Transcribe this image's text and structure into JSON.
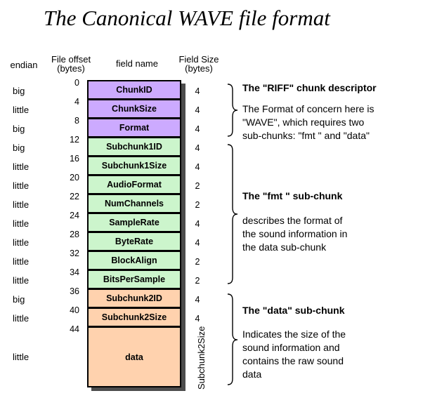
{
  "title": "The Canonical WAVE file format",
  "column_headers": {
    "endian": "endian",
    "offset_line1": "File offset",
    "offset_line2": "(bytes)",
    "field_name": "field name",
    "size_line1": "Field Size",
    "size_line2": "(bytes)"
  },
  "colors": {
    "riff_group": "#ccaaff",
    "fmt_group": "#ccf5cc",
    "data_group": "#ffd2ae",
    "shadow": "#4d4d4d"
  },
  "rows": [
    {
      "endian": "big",
      "offset": "0",
      "field": "ChunkID",
      "size": "4",
      "group": "riff_group"
    },
    {
      "endian": "little",
      "offset": "4",
      "field": "ChunkSize",
      "size": "4",
      "group": "riff_group"
    },
    {
      "endian": "big",
      "offset": "8",
      "field": "Format",
      "size": "4",
      "group": "riff_group"
    },
    {
      "endian": "big",
      "offset": "12",
      "field": "Subchunk1ID",
      "size": "4",
      "group": "fmt_group"
    },
    {
      "endian": "little",
      "offset": "16",
      "field": "Subchunk1Size",
      "size": "4",
      "group": "fmt_group"
    },
    {
      "endian": "little",
      "offset": "20",
      "field": "AudioFormat",
      "size": "2",
      "group": "fmt_group"
    },
    {
      "endian": "little",
      "offset": "22",
      "field": "NumChannels",
      "size": "2",
      "group": "fmt_group"
    },
    {
      "endian": "little",
      "offset": "24",
      "field": "SampleRate",
      "size": "4",
      "group": "fmt_group"
    },
    {
      "endian": "little",
      "offset": "28",
      "field": "ByteRate",
      "size": "4",
      "group": "fmt_group"
    },
    {
      "endian": "little",
      "offset": "32",
      "field": "BlockAlign",
      "size": "2",
      "group": "fmt_group"
    },
    {
      "endian": "little",
      "offset": "34",
      "field": "BitsPerSample",
      "size": "2",
      "group": "fmt_group"
    },
    {
      "endian": "big",
      "offset": "36",
      "field": "Subchunk2ID",
      "size": "4",
      "group": "data_group"
    },
    {
      "endian": "little",
      "offset": "40",
      "field": "Subchunk2Size",
      "size": "4",
      "group": "data_group"
    },
    {
      "endian": "little",
      "offset": "44",
      "field": "data",
      "size": "",
      "group": "data_group",
      "tall": true
    }
  ],
  "data_row_size_label": "Subchunk2Size",
  "annotations": [
    {
      "heading": "The \"RIFF\" chunk descriptor",
      "body": [
        "The Format of concern here is",
        "\"WAVE\", which requires two",
        "sub-chunks: \"fmt \" and \"data\""
      ]
    },
    {
      "heading": "The \"fmt \" sub-chunk",
      "body": [
        "describes the format of",
        "the sound information in",
        "the data sub-chunk"
      ]
    },
    {
      "heading": "The \"data\" sub-chunk",
      "body": [
        "Indicates the size of the",
        "sound information and",
        "contains the raw sound",
        "data"
      ]
    }
  ]
}
